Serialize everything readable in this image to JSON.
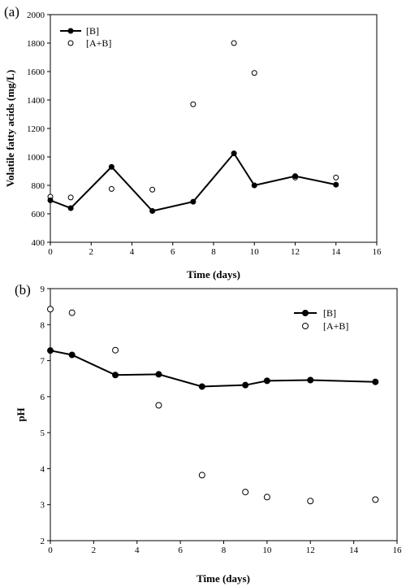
{
  "chart_data": [
    {
      "panel_label": "(a)",
      "type": "line",
      "xlabel": "Time (days)",
      "ylabel": "Volatile fatty acids (mg/L)",
      "xlim": [
        0,
        16
      ],
      "ylim": [
        400,
        2000
      ],
      "xticks": [
        0,
        2,
        4,
        6,
        8,
        10,
        12,
        14,
        16
      ],
      "yticks": [
        400,
        600,
        800,
        1000,
        1200,
        1400,
        1600,
        1800,
        2000
      ],
      "grid": false,
      "legend_position": "top-left",
      "series": [
        {
          "name": "[B]",
          "style": "line-filled-circle",
          "x": [
            0,
            1,
            3,
            5,
            7,
            9,
            10,
            12,
            14
          ],
          "y": [
            695,
            640,
            930,
            620,
            685,
            1025,
            800,
            865,
            805
          ]
        },
        {
          "name": "[A+B]",
          "style": "open-circle",
          "x": [
            0,
            1,
            3,
            5,
            7,
            9,
            10,
            12,
            14
          ],
          "y": [
            720,
            715,
            775,
            770,
            1370,
            1800,
            1590,
            855,
            855
          ]
        }
      ]
    },
    {
      "panel_label": "(b)",
      "type": "line",
      "xlabel": "Time (days)",
      "ylabel": "pH",
      "xlim": [
        0,
        16
      ],
      "ylim": [
        2,
        9
      ],
      "xticks": [
        0,
        2,
        4,
        6,
        8,
        10,
        12,
        14,
        16
      ],
      "yticks": [
        2,
        3,
        4,
        5,
        6,
        7,
        8,
        9
      ],
      "grid": false,
      "legend_position": "top-right",
      "series": [
        {
          "name": "[B]",
          "style": "line-filled-circle",
          "x": [
            0,
            1,
            3,
            5,
            7,
            9,
            10,
            12,
            15
          ],
          "y": [
            7.28,
            7.16,
            6.6,
            6.62,
            6.28,
            6.32,
            6.44,
            6.46,
            6.41
          ]
        },
        {
          "name": "[A+B]",
          "style": "open-circle",
          "x": [
            0,
            1,
            3,
            5,
            7,
            9,
            10,
            12,
            15
          ],
          "y": [
            8.43,
            8.33,
            7.29,
            5.76,
            3.82,
            3.35,
            3.21,
            3.1,
            3.14
          ]
        }
      ]
    }
  ]
}
